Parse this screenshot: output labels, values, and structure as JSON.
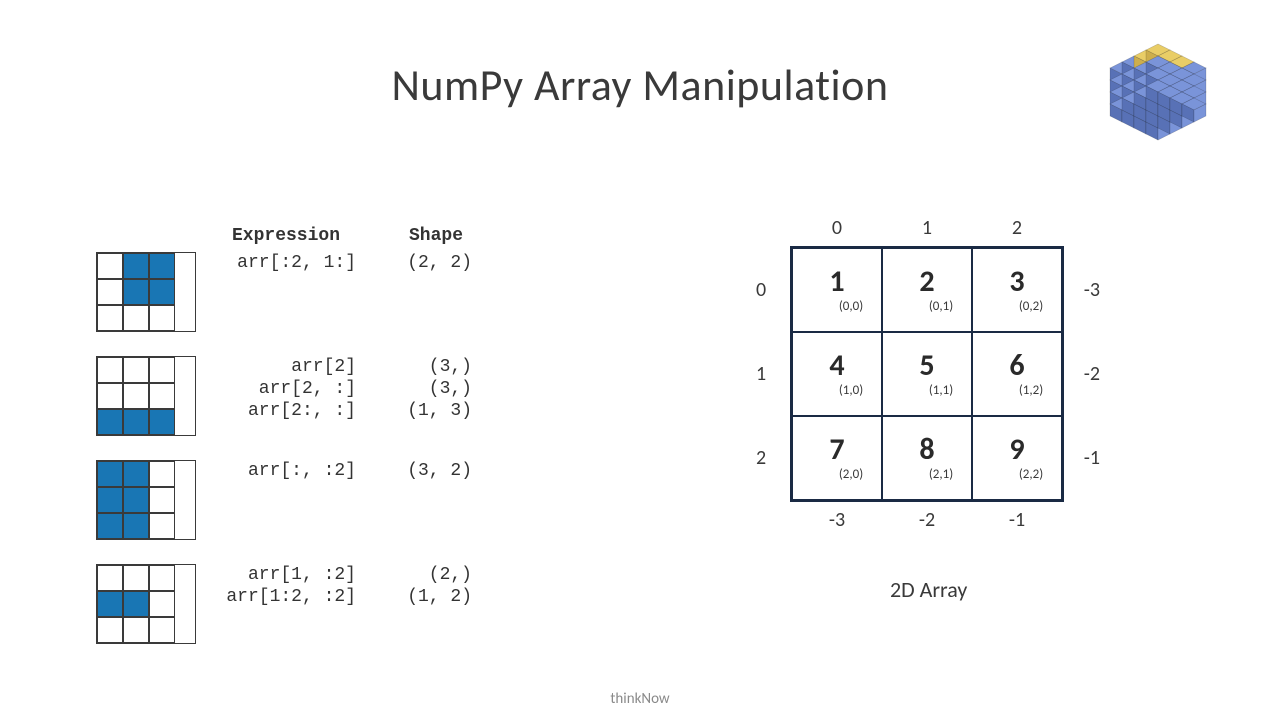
{
  "title": "NumPy Array Manipulation",
  "footer": "thinkNow",
  "colors": {
    "slice_fill": "#1976b4",
    "grid_border": "#1a2a44",
    "cube_blue": "#6f8bd6",
    "cube_blue_dark": "#4a66b0",
    "cube_yellow": "#e8c95a",
    "cube_yellow_dark": "#c9a83d"
  },
  "slice_table": {
    "headers": {
      "expression": "Expression",
      "shape": "Shape"
    },
    "groups": [
      {
        "filled": [
          [
            0,
            1
          ],
          [
            0,
            2
          ],
          [
            1,
            1
          ],
          [
            1,
            2
          ]
        ],
        "rows": [
          {
            "expr": "arr[:2, 1:]",
            "shape": "(2, 2)"
          }
        ]
      },
      {
        "filled": [
          [
            2,
            0
          ],
          [
            2,
            1
          ],
          [
            2,
            2
          ]
        ],
        "rows": [
          {
            "expr": "arr[2]",
            "shape": "(3,)"
          },
          {
            "expr": "arr[2, :]",
            "shape": "(3,)"
          },
          {
            "expr": "arr[2:, :]",
            "shape": "(1, 3)"
          }
        ]
      },
      {
        "filled": [
          [
            0,
            0
          ],
          [
            0,
            1
          ],
          [
            1,
            0
          ],
          [
            1,
            1
          ],
          [
            2,
            0
          ],
          [
            2,
            1
          ]
        ],
        "rows": [
          {
            "expr": "arr[:, :2]",
            "shape": "(3, 2)"
          }
        ]
      },
      {
        "filled": [
          [
            1,
            0
          ],
          [
            1,
            1
          ]
        ],
        "rows": [
          {
            "expr": "arr[1, :2]",
            "shape": "(2,)"
          },
          {
            "expr": "arr[1:2, :2]",
            "shape": "(1, 2)"
          }
        ]
      }
    ]
  },
  "array2d": {
    "caption": "2D Array",
    "pos_cols": [
      "0",
      "1",
      "2"
    ],
    "pos_rows": [
      "0",
      "1",
      "2"
    ],
    "neg_cols": [
      "-3",
      "-2",
      "-1"
    ],
    "neg_rows": [
      "-3",
      "-2",
      "-1"
    ],
    "cells": [
      [
        {
          "v": "1",
          "c": "(0,0)"
        },
        {
          "v": "2",
          "c": "(0,1)"
        },
        {
          "v": "3",
          "c": "(0,2)"
        }
      ],
      [
        {
          "v": "4",
          "c": "(1,0)"
        },
        {
          "v": "5",
          "c": "(1,1)"
        },
        {
          "v": "6",
          "c": "(1,2)"
        }
      ],
      [
        {
          "v": "7",
          "c": "(2,0)"
        },
        {
          "v": "8",
          "c": "(2,1)"
        },
        {
          "v": "9",
          "c": "(2,2)"
        }
      ]
    ]
  }
}
